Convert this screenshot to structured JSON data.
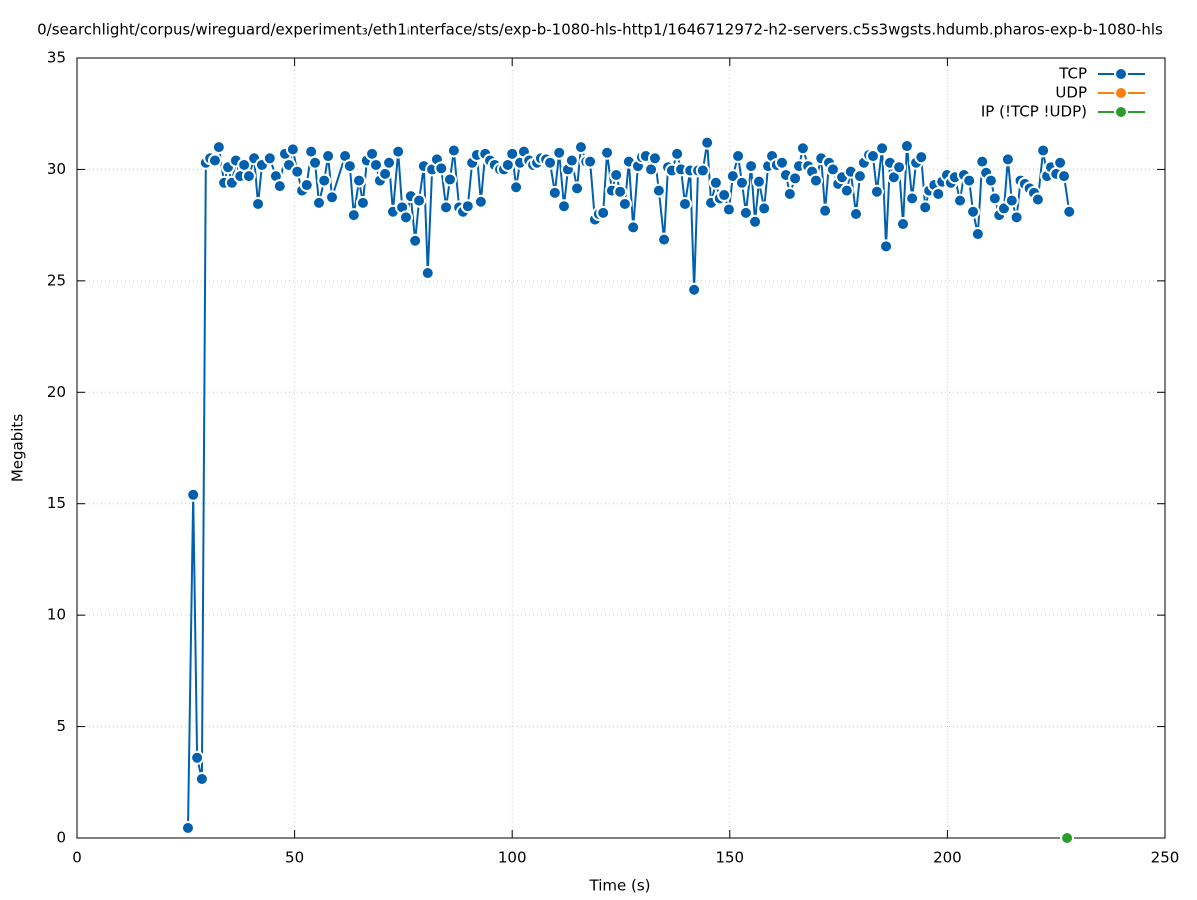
{
  "chart_data": {
    "type": "line",
    "title": "0/searchlight/corpus/wireguard/experiment₃/eth1ᵢnterface/sts/exp-b-1080-hls-http1/1646712972-h2-servers.c5s3wgsts.hdumb.pharos-exp-b-1080-hls",
    "x_label": "Time (s)",
    "y_label": "Megabits",
    "xlim": [
      0,
      250
    ],
    "xticks": [
      0,
      50,
      100,
      150,
      200,
      250
    ],
    "ylim": [
      0,
      35
    ],
    "yticks": [
      0,
      5,
      10,
      15,
      20,
      25,
      30,
      35
    ],
    "grid": true,
    "legend": "top right",
    "series": [
      {
        "name": "TCP",
        "color": "#0060ad",
        "x": [
          25.5,
          26.7,
          27.6,
          28.7,
          29.6,
          30.6,
          31.7,
          32.6,
          33.8,
          34.7,
          35.6,
          36.5,
          37.5,
          38.4,
          39.5,
          40.7,
          41.6,
          42.5,
          44.3,
          45.7,
          46.6,
          47.8,
          48.7,
          49.6,
          50.6,
          51.7,
          52.8,
          53.8,
          54.7,
          55.6,
          56.8,
          57.7,
          58.6,
          61.6,
          62.7,
          63.6,
          64.8,
          65.7,
          66.6,
          67.8,
          68.7,
          69.6,
          70.8,
          71.7,
          72.6,
          73.8,
          74.7,
          75.6,
          76.7,
          77.7,
          78.6,
          79.7,
          80.6,
          81.6,
          82.7,
          83.7,
          84.8,
          85.7,
          86.6,
          87.8,
          88.7,
          89.8,
          90.8,
          91.9,
          92.8,
          93.8,
          94.9,
          96.0,
          97.2,
          98.1,
          99.0,
          100.0,
          100.9,
          101.8,
          102.7,
          103.9,
          104.8,
          105.7,
          106.6,
          107.8,
          108.7,
          109.8,
          110.8,
          111.9,
          112.8,
          113.7,
          114.9,
          115.8,
          117.0,
          117.9,
          119.0,
          119.9,
          120.9,
          121.8,
          122.9,
          123.9,
          124.8,
          125.9,
          126.8,
          127.8,
          128.9,
          129.8,
          130.7,
          131.9,
          132.8,
          133.7,
          134.9,
          135.8,
          136.7,
          137.9,
          138.8,
          139.7,
          140.9,
          141.8,
          142.7,
          143.8,
          144.8,
          145.7,
          146.8,
          147.7,
          148.7,
          149.8,
          150.7,
          151.9,
          152.8,
          153.7,
          154.9,
          155.8,
          156.7,
          157.9,
          158.8,
          159.7,
          160.8,
          162.0,
          162.9,
          163.8,
          165.0,
          165.9,
          166.8,
          168.0,
          168.9,
          169.8,
          171.0,
          171.9,
          172.8,
          173.7,
          174.9,
          175.8,
          176.9,
          177.8,
          179.0,
          179.9,
          180.8,
          182.0,
          182.9,
          183.8,
          185.0,
          185.9,
          186.8,
          187.7,
          188.9,
          189.8,
          190.7,
          191.9,
          192.8,
          194.0,
          194.9,
          195.8,
          197.0,
          197.9,
          198.8,
          199.9,
          200.8,
          201.7,
          202.9,
          203.8,
          205.0,
          205.9,
          207.0,
          208.0,
          208.9,
          210.0,
          210.9,
          211.9,
          213.0,
          213.9,
          214.8,
          215.9,
          216.8,
          217.8,
          218.9,
          219.9,
          220.8,
          222.0,
          222.9,
          223.8,
          225.0,
          225.9,
          226.8,
          228.0
        ],
        "values": [
          0.45,
          15.4,
          3.6,
          2.65,
          30.3,
          30.5,
          30.4,
          31.0,
          29.4,
          30.1,
          29.4,
          30.4,
          29.7,
          30.2,
          29.7,
          30.5,
          28.45,
          30.2,
          30.5,
          29.7,
          29.25,
          30.7,
          30.2,
          30.9,
          29.9,
          29.05,
          29.3,
          30.8,
          30.3,
          28.5,
          29.5,
          30.6,
          28.75,
          30.6,
          30.15,
          27.95,
          29.5,
          28.5,
          30.4,
          30.7,
          30.2,
          29.5,
          29.8,
          30.3,
          28.1,
          30.8,
          28.3,
          27.85,
          28.8,
          26.8,
          28.6,
          30.15,
          25.35,
          30.0,
          30.45,
          30.05,
          28.3,
          29.55,
          30.85,
          28.3,
          28.1,
          28.35,
          30.3,
          30.65,
          28.55,
          30.7,
          30.4,
          30.2,
          30.0,
          30.0,
          30.2,
          30.7,
          29.2,
          30.3,
          30.8,
          30.4,
          30.2,
          30.3,
          30.5,
          30.45,
          30.3,
          28.95,
          30.75,
          28.35,
          30.0,
          30.4,
          29.15,
          31.0,
          30.35,
          30.35,
          27.75,
          28.0,
          28.05,
          30.75,
          29.05,
          29.75,
          29.0,
          28.45,
          30.35,
          27.4,
          30.15,
          30.55,
          30.6,
          30.0,
          30.5,
          29.05,
          26.85,
          30.1,
          29.95,
          30.7,
          30.0,
          28.45,
          29.95,
          24.6,
          29.95,
          29.95,
          31.2,
          28.5,
          29.4,
          28.7,
          28.85,
          28.2,
          29.7,
          30.6,
          29.4,
          28.05,
          30.15,
          27.65,
          29.45,
          28.25,
          30.15,
          30.6,
          30.2,
          30.3,
          29.75,
          28.9,
          29.6,
          30.15,
          30.95,
          30.15,
          29.9,
          29.5,
          30.5,
          28.15,
          30.3,
          30.0,
          29.35,
          29.65,
          29.05,
          29.9,
          28.0,
          29.7,
          30.3,
          30.65,
          30.6,
          29.0,
          30.95,
          26.55,
          30.3,
          29.65,
          30.1,
          27.55,
          31.05,
          28.7,
          30.3,
          30.55,
          28.3,
          29.05,
          29.3,
          28.9,
          29.45,
          29.75,
          29.4,
          29.65,
          28.6,
          29.75,
          29.5,
          28.1,
          27.1,
          30.35,
          29.85,
          29.5,
          28.7,
          27.95,
          28.25,
          30.45,
          28.6,
          27.85,
          29.5,
          29.35,
          29.15,
          28.95,
          28.65,
          30.85,
          29.7,
          30.1,
          29.8,
          30.3,
          29.7,
          28.1
        ]
      },
      {
        "name": "UDP",
        "color": "#ff7f0e",
        "x": [],
        "values": []
      },
      {
        "name": "IP (!TCP  !UDP)",
        "color": "#2a9d2a",
        "x": [
          227.5
        ],
        "values": [
          0
        ]
      }
    ]
  }
}
